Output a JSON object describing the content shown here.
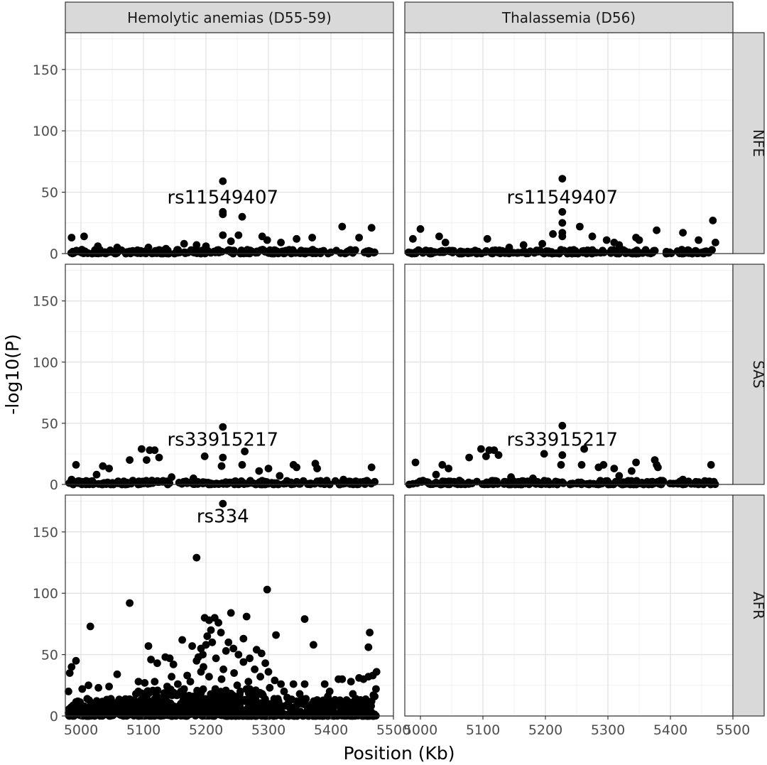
{
  "chart_data": {
    "type": "scatter",
    "xlabel": "Position (Kb)",
    "ylabel": "-log10(P)",
    "xlim": [
      4975,
      5500
    ],
    "ylim": [
      0,
      180
    ],
    "x_ticks": [
      "5000",
      "5100",
      "5200",
      "5300",
      "5400",
      "5500"
    ],
    "y_ticks": [
      "0",
      "50",
      "100",
      "150"
    ],
    "column_strips": [
      "Hemolytic anemias (D55-59)",
      "Thalassemia (D56)"
    ],
    "row_strips": [
      "NFE",
      "SAS",
      "AFR"
    ],
    "panels": [
      {
        "col": 0,
        "row": 0,
        "label": "rs11549407",
        "label_at": [
          5227,
          46
        ],
        "points": [
          [
            5227,
            59
          ],
          [
            5227,
            34
          ],
          [
            5227,
            32
          ],
          [
            5227,
            15
          ],
          [
            4985,
            13
          ],
          [
            5005,
            14
          ],
          [
            5252,
            15
          ],
          [
            5258,
            30
          ],
          [
            5165,
            8
          ],
          [
            5290,
            14
          ],
          [
            5298,
            11
          ],
          [
            5345,
            12
          ],
          [
            5370,
            13
          ],
          [
            5418,
            22
          ],
          [
            5465,
            21
          ],
          [
            5445,
            13
          ],
          [
            5200,
            6
          ],
          [
            5320,
            9
          ],
          [
            5185,
            7
          ],
          [
            5108,
            5
          ],
          [
            5027,
            6
          ],
          [
            5058,
            5
          ],
          [
            5136,
            4
          ],
          [
            5240,
            10
          ]
        ]
      },
      {
        "col": 1,
        "row": 0,
        "label": "rs11549407",
        "label_at": [
          5227,
          46
        ],
        "points": [
          [
            5227,
            61
          ],
          [
            5227,
            34
          ],
          [
            5227,
            25
          ],
          [
            5227,
            17
          ],
          [
            5227,
            14
          ],
          [
            5212,
            16
          ],
          [
            5255,
            22
          ],
          [
            5275,
            14
          ],
          [
            4988,
            12
          ],
          [
            5000,
            20
          ],
          [
            5030,
            14
          ],
          [
            5040,
            9
          ],
          [
            5107,
            12
          ],
          [
            5165,
            7
          ],
          [
            5195,
            8
          ],
          [
            5298,
            11
          ],
          [
            5310,
            9
          ],
          [
            5345,
            13
          ],
          [
            5350,
            11
          ],
          [
            5378,
            19
          ],
          [
            5420,
            17
          ],
          [
            5445,
            11
          ],
          [
            5468,
            27
          ],
          [
            5472,
            9
          ],
          [
            5142,
            5
          ],
          [
            5318,
            7
          ]
        ]
      },
      {
        "col": 0,
        "row": 1,
        "label": "rs33915217",
        "label_at": [
          5227,
          37
        ],
        "points": [
          [
            5227,
            47
          ],
          [
            5227,
            22
          ],
          [
            5225,
            15
          ],
          [
            5198,
            23
          ],
          [
            5097,
            29
          ],
          [
            5110,
            28
          ],
          [
            5118,
            28
          ],
          [
            5105,
            20
          ],
          [
            5125,
            22
          ],
          [
            5078,
            20
          ],
          [
            5045,
            13
          ],
          [
            5035,
            15
          ],
          [
            4992,
            16
          ],
          [
            4985,
            4
          ],
          [
            5262,
            27
          ],
          [
            5258,
            16
          ],
          [
            5285,
            11
          ],
          [
            5300,
            13
          ],
          [
            5340,
            16
          ],
          [
            5345,
            14
          ],
          [
            5375,
            17
          ],
          [
            5378,
            13
          ],
          [
            5465,
            14
          ],
          [
            5145,
            6
          ],
          [
            5180,
            5
          ],
          [
            5318,
            7
          ],
          [
            5420,
            4
          ],
          [
            5025,
            8
          ]
        ]
      },
      {
        "col": 1,
        "row": 1,
        "label": "rs33915217",
        "label_at": [
          5227,
          37
        ],
        "points": [
          [
            5227,
            48
          ],
          [
            5227,
            24
          ],
          [
            5225,
            16
          ],
          [
            5198,
            25
          ],
          [
            5097,
            29
          ],
          [
            5110,
            28
          ],
          [
            5118,
            28
          ],
          [
            5105,
            23
          ],
          [
            5125,
            24
          ],
          [
            5078,
            22
          ],
          [
            5045,
            13
          ],
          [
            5035,
            16
          ],
          [
            4992,
            18
          ],
          [
            5262,
            29
          ],
          [
            5258,
            16
          ],
          [
            5285,
            14
          ],
          [
            5293,
            16
          ],
          [
            5310,
            13
          ],
          [
            5338,
            11
          ],
          [
            5345,
            18
          ],
          [
            5375,
            20
          ],
          [
            5378,
            16
          ],
          [
            5380,
            14
          ],
          [
            5465,
            16
          ],
          [
            5145,
            6
          ],
          [
            5180,
            5
          ],
          [
            5318,
            7
          ],
          [
            5420,
            4
          ],
          [
            5025,
            8
          ]
        ]
      },
      {
        "col": 0,
        "row": 2,
        "label": "rs334",
        "label_at": [
          5227,
          163
        ],
        "points": [
          [
            5227,
            173
          ],
          [
            5185,
            129
          ],
          [
            5078,
            92
          ],
          [
            5298,
            103
          ],
          [
            5015,
            73
          ],
          [
            5198,
            80
          ],
          [
            5205,
            78
          ],
          [
            5214,
            80
          ],
          [
            5220,
            76
          ],
          [
            5240,
            84
          ],
          [
            5265,
            81
          ],
          [
            5358,
            79
          ],
          [
            5312,
            66
          ],
          [
            5372,
            58
          ],
          [
            5462,
            68
          ],
          [
            5460,
            56
          ],
          [
            5192,
            55
          ],
          [
            5200,
            58
          ],
          [
            5195,
            50
          ],
          [
            5210,
            60
          ],
          [
            5216,
            47
          ],
          [
            5178,
            57
          ],
          [
            5162,
            62
          ],
          [
            5108,
            57
          ],
          [
            5112,
            46
          ],
          [
            5135,
            48
          ],
          [
            5148,
            42
          ],
          [
            5142,
            47
          ],
          [
            5122,
            43
          ],
          [
            5185,
            45
          ],
          [
            5188,
            48
          ],
          [
            5196,
            40
          ],
          [
            5232,
            53
          ],
          [
            5252,
            50
          ],
          [
            5270,
            47
          ],
          [
            5281,
            54
          ],
          [
            5289,
            51
          ],
          [
            5295,
            43
          ],
          [
            5300,
            36
          ],
          [
            4992,
            45
          ],
          [
            4985,
            40
          ],
          [
            4982,
            35
          ],
          [
            4980,
            20
          ],
          [
            5002,
            22
          ],
          [
            5012,
            25
          ],
          [
            5028,
            23
          ],
          [
            5045,
            24
          ],
          [
            5058,
            34
          ],
          [
            5092,
            28
          ],
          [
            5102,
            27
          ],
          [
            5118,
            28
          ],
          [
            5145,
            32
          ],
          [
            5170,
            33
          ],
          [
            5192,
            36
          ],
          [
            5205,
            32
          ],
          [
            5225,
            30
          ],
          [
            5245,
            35
          ],
          [
            5268,
            28
          ],
          [
            5287,
            32
          ],
          [
            5310,
            29
          ],
          [
            5320,
            26
          ],
          [
            5340,
            26
          ],
          [
            5358,
            26
          ],
          [
            5390,
            26
          ],
          [
            5398,
            20
          ],
          [
            5412,
            30
          ],
          [
            5418,
            30
          ],
          [
            5432,
            28
          ],
          [
            5445,
            31
          ],
          [
            5452,
            30
          ],
          [
            5460,
            32
          ],
          [
            5467,
            33
          ],
          [
            5473,
            36
          ],
          [
            5472,
            22
          ],
          [
            5468,
            17
          ],
          [
            5465,
            12
          ],
          [
            5100,
            15
          ],
          [
            5120,
            18
          ],
          [
            5160,
            20
          ],
          [
            5180,
            16
          ],
          [
            5215,
            22
          ],
          [
            5235,
            18
          ],
          [
            5255,
            20
          ],
          [
            5272,
            16
          ],
          [
            5290,
            18
          ],
          [
            5315,
            14
          ],
          [
            5330,
            15
          ],
          [
            5345,
            12
          ],
          [
            5360,
            14
          ],
          [
            5378,
            13
          ],
          [
            5400,
            12
          ],
          [
            5425,
            13
          ],
          [
            5440,
            14
          ],
          [
            5455,
            11
          ],
          [
            4995,
            12
          ],
          [
            5010,
            14
          ],
          [
            5040,
            10
          ],
          [
            5060,
            12
          ],
          [
            5075,
            11
          ],
          [
            5085,
            13
          ],
          [
            5228,
            38
          ],
          [
            5224,
            68
          ],
          [
            5202,
            65
          ],
          [
            5260,
            63
          ],
          [
            5208,
            70
          ],
          [
            5236,
            60
          ],
          [
            5244,
            55
          ],
          [
            5260,
            44
          ],
          [
            5278,
            38
          ],
          [
            5048,
            14
          ],
          [
            5070,
            9
          ],
          [
            5088,
            18
          ],
          [
            5138,
            24
          ],
          [
            5155,
            26
          ],
          [
            5165,
            22
          ],
          [
            5175,
            28
          ],
          [
            5250,
            25
          ],
          [
            5265,
            22
          ],
          [
            5302,
            23
          ],
          [
            5325,
            20
          ],
          [
            5350,
            18
          ],
          [
            5395,
            16
          ],
          [
            5435,
            18
          ],
          [
            5470,
            16
          ]
        ]
      }
    ]
  }
}
